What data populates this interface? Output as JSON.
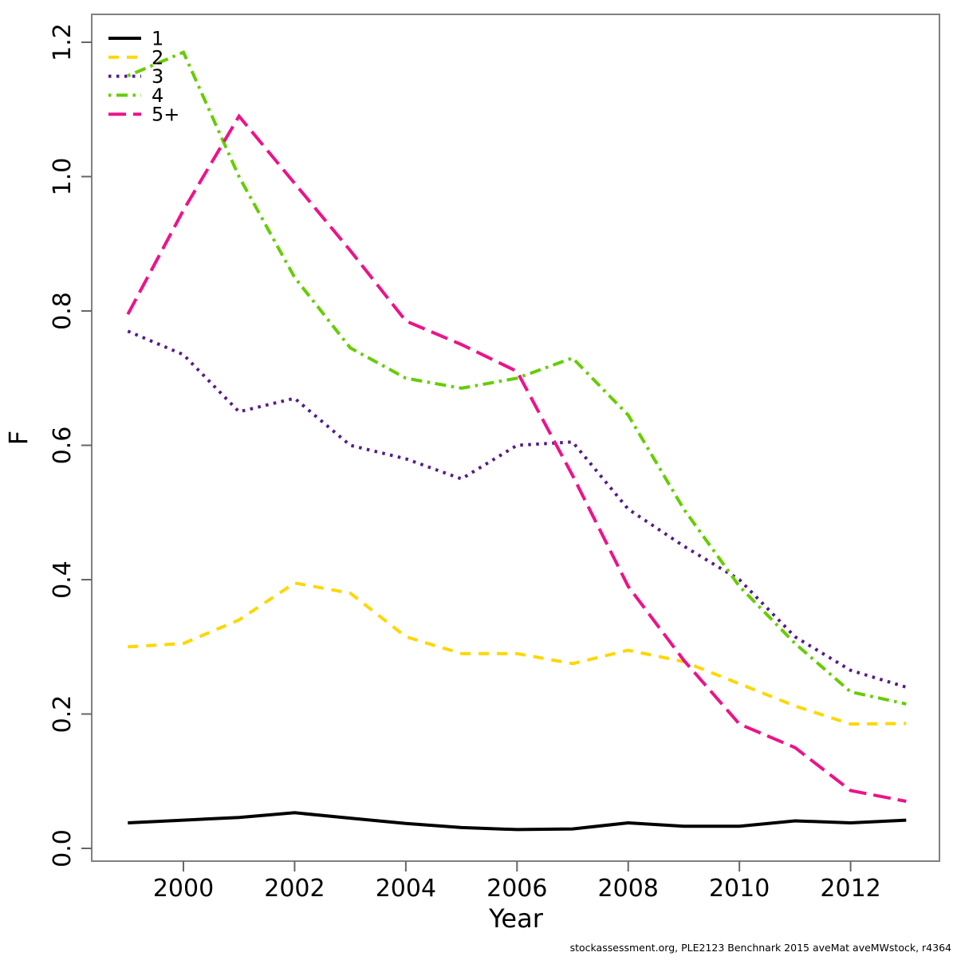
{
  "figure": {
    "background": "#ffffff",
    "xlabel": "Year",
    "ylabel": "F",
    "caption": "stockassessment.org, PLE2123  Benchnark  2015  aveMat  aveMWstock, r4364"
  },
  "chart_data": {
    "type": "line",
    "title": "",
    "xlabel": "Year",
    "ylabel": "F",
    "x": [
      1999,
      2000,
      2001,
      2002,
      2003,
      2004,
      2005,
      2006,
      2007,
      2008,
      2009,
      2010,
      2011,
      2012,
      2013
    ],
    "xlim": [
      1998.44,
      2013.56
    ],
    "ylim": [
      0.0,
      1.2
    ],
    "xticks": [
      2000,
      2002,
      2004,
      2006,
      2008,
      2010,
      2012
    ],
    "ytick_values": [
      0.0,
      0.2,
      0.4,
      0.6,
      0.8,
      1.0,
      1.2
    ],
    "ytick_labels": [
      "0.0",
      "0.2",
      "0.4",
      "0.6",
      "0.8",
      "1.0",
      "1.2"
    ],
    "grid": false,
    "legend_position": "top-left",
    "box_color": "#808080",
    "tick_color": "#666666",
    "series": [
      {
        "name": "1",
        "color": "#000000",
        "linetype": "solid",
        "linewidth": 4,
        "values": [
          0.038,
          0.042,
          0.046,
          0.053,
          0.045,
          0.037,
          0.031,
          0.028,
          0.029,
          0.038,
          0.033,
          0.033,
          0.041,
          0.038,
          0.042
        ]
      },
      {
        "name": "2",
        "color": "#FFD700",
        "linetype": "dashed",
        "linewidth": 4,
        "values": [
          0.3,
          0.305,
          0.34,
          0.395,
          0.38,
          0.315,
          0.29,
          0.29,
          0.275,
          0.295,
          0.278,
          0.245,
          0.212,
          0.185,
          0.186
        ]
      },
      {
        "name": "3",
        "color": "#551A8B",
        "linetype": "dotted",
        "linewidth": 4,
        "values": [
          0.77,
          0.735,
          0.65,
          0.67,
          0.6,
          0.58,
          0.55,
          0.6,
          0.605,
          0.505,
          0.45,
          0.4,
          0.315,
          0.265,
          0.24
        ]
      },
      {
        "name": "4",
        "color": "#66CD00",
        "linetype": "dotdash",
        "linewidth": 4,
        "values": [
          1.15,
          1.185,
          1.0,
          0.85,
          0.745,
          0.7,
          0.685,
          0.7,
          0.73,
          0.645,
          0.505,
          0.39,
          0.305,
          0.233,
          0.215
        ]
      },
      {
        "name": "5+",
        "color": "#EE1289",
        "linetype": "longdash",
        "linewidth": 4,
        "values": [
          0.795,
          0.95,
          1.09,
          0.99,
          0.89,
          0.785,
          0.75,
          0.71,
          0.555,
          0.39,
          0.28,
          0.185,
          0.15,
          0.086,
          0.07
        ]
      }
    ]
  }
}
